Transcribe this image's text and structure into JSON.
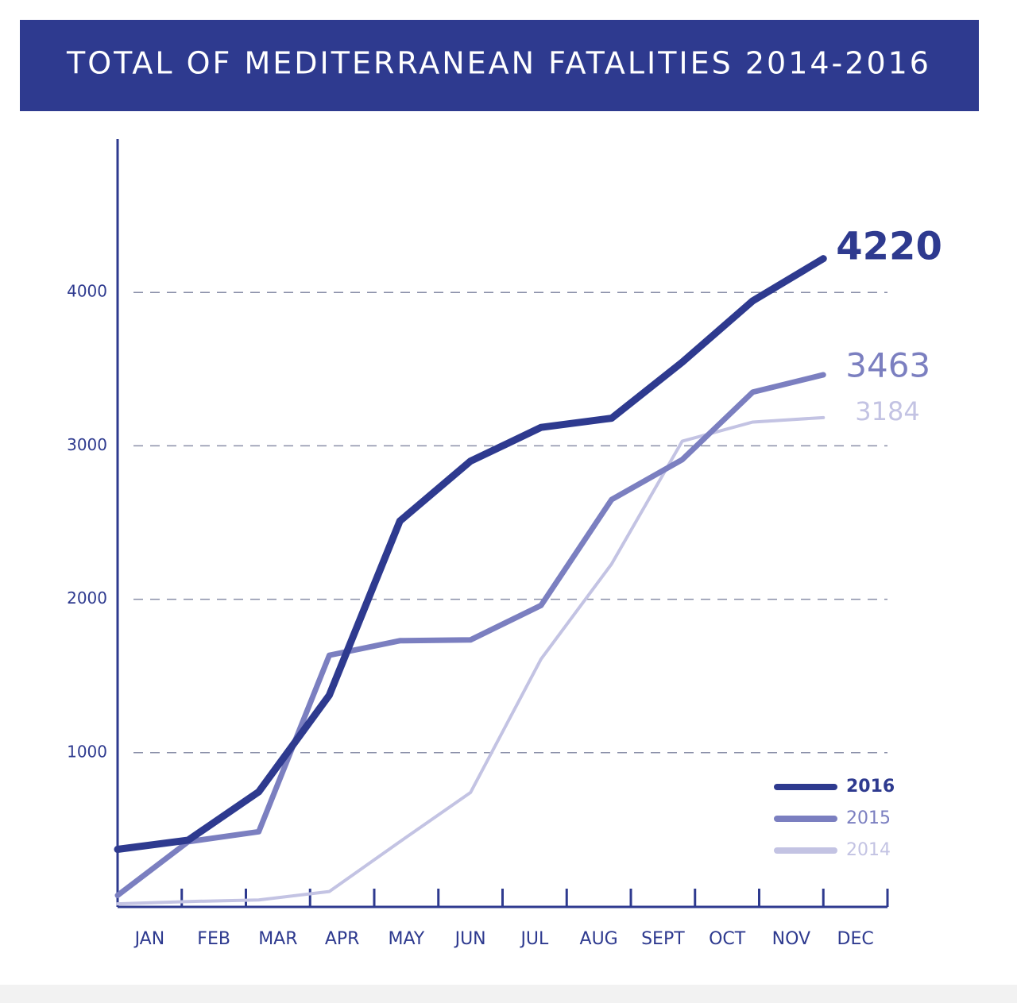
{
  "chart_data": {
    "type": "line",
    "title": "TOTAL OF MEDITERRANEAN FATALITIES 2014-2016",
    "categories": [
      "JAN",
      "FEB",
      "MAR",
      "APR",
      "MAY",
      "JUN",
      "JUL",
      "AUG",
      "SEPT",
      "OCT",
      "NOV",
      "DEC"
    ],
    "series": [
      {
        "name": "2016",
        "color": "#2e3a8f",
        "values": [
          370,
          430,
          745,
          1375,
          2510,
          2900,
          3120,
          3180,
          3545,
          3945,
          4220,
          null
        ]
      },
      {
        "name": "2015",
        "color": "#7b7fc0",
        "values": [
          70,
          420,
          485,
          1635,
          1730,
          1735,
          1960,
          2650,
          2910,
          3350,
          3463,
          null
        ]
      },
      {
        "name": "2014",
        "color": "#c3c3e3",
        "values": [
          15,
          30,
          40,
          95,
          420,
          740,
          1610,
          2230,
          3030,
          3155,
          3184,
          null
        ]
      }
    ],
    "ylim": [
      0,
      5000
    ],
    "yticks": [
      1000,
      2000,
      3000,
      4000
    ],
    "grid": true,
    "legend": "lower right"
  }
}
